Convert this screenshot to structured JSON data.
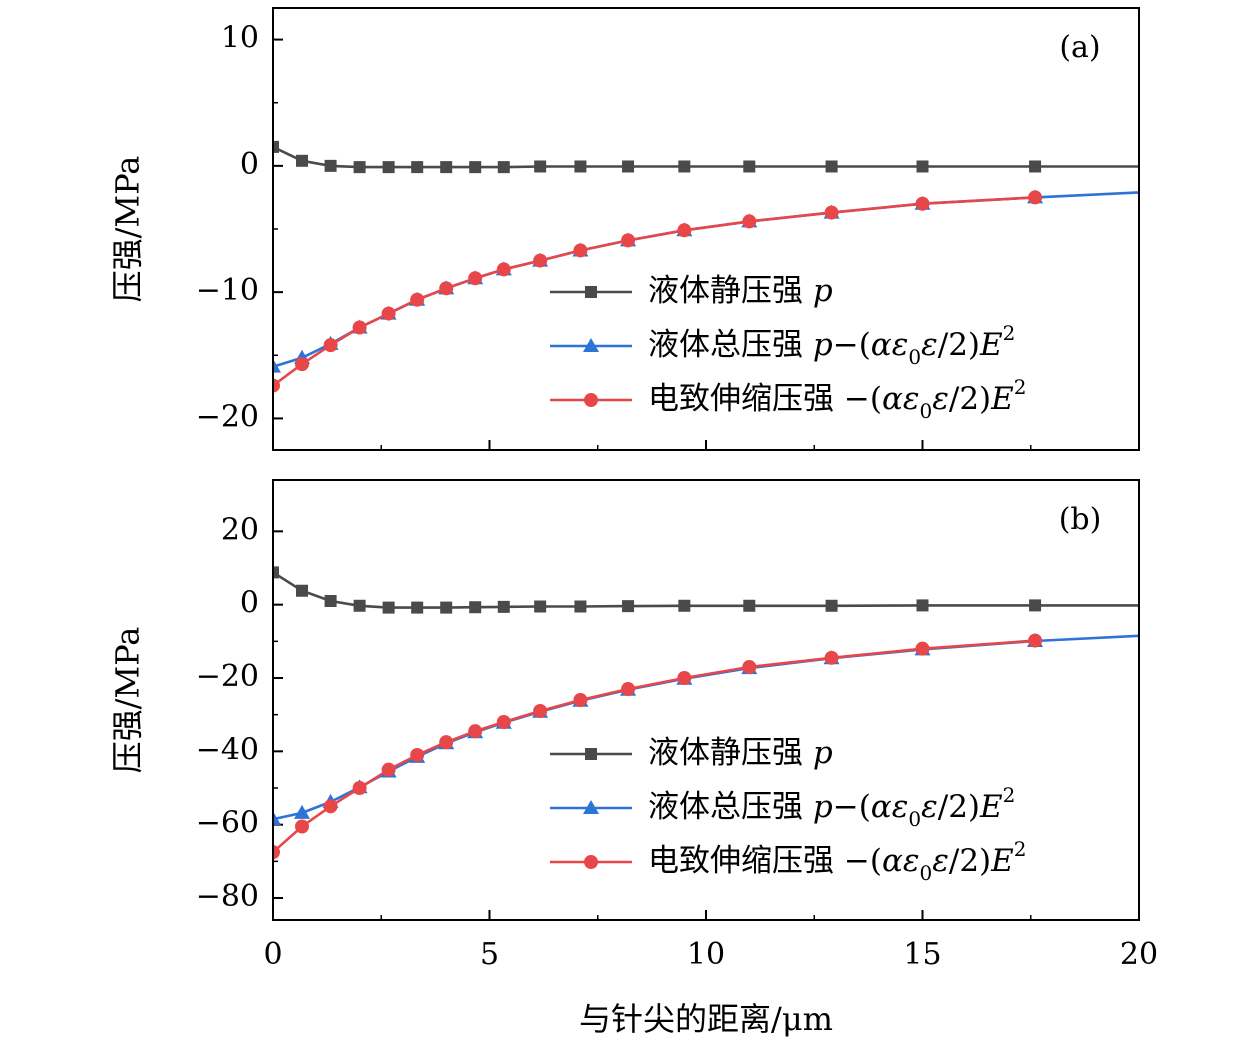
{
  "chart_data": [
    {
      "type": "line",
      "panel_label": "(a)",
      "ylabel": "压强/MPa",
      "xlim": [
        0,
        20
      ],
      "ylim": [
        -22.5,
        12.5
      ],
      "yticks": [
        10,
        0,
        -10,
        -20
      ],
      "ytick_labels": [
        "10",
        "0",
        "−10",
        "−20"
      ],
      "grid": false,
      "legend_position": "center-right",
      "series": [
        {
          "name": "液体静压强 p",
          "color": "#4a4a4a",
          "marker": "square",
          "x": [
            0,
            0.67,
            1.33,
            2.0,
            2.67,
            3.33,
            4.0,
            4.67,
            5.33,
            6.17,
            7.1,
            8.2,
            9.5,
            11.0,
            12.9,
            15.0,
            17.6,
            20.0
          ],
          "y": [
            1.5,
            0.4,
            0.0,
            -0.1,
            -0.1,
            -0.1,
            -0.1,
            -0.1,
            -0.1,
            -0.05,
            -0.05,
            -0.05,
            -0.05,
            -0.05,
            -0.05,
            -0.05,
            -0.05,
            -0.05
          ],
          "marker_until": 17.6
        },
        {
          "name": "液体总压强 p−(αε₀ε/2)E²",
          "color": "#2e73d6",
          "marker": "triangle",
          "x": [
            0,
            0.67,
            1.33,
            2.0,
            2.67,
            3.33,
            4.0,
            4.67,
            5.33,
            6.17,
            7.1,
            8.2,
            9.5,
            11.0,
            12.9,
            15.0,
            17.6,
            20.0
          ],
          "y": [
            -15.9,
            -15.2,
            -14.1,
            -12.8,
            -11.7,
            -10.6,
            -9.7,
            -8.9,
            -8.2,
            -7.5,
            -6.7,
            -5.9,
            -5.1,
            -4.4,
            -3.7,
            -3.0,
            -2.5,
            -2.1
          ],
          "marker_until": 17.6
        },
        {
          "name": "电致伸缩压强 −(αε₀ε/2)E²",
          "color": "#e8474a",
          "marker": "circle",
          "x": [
            0,
            0.67,
            1.33,
            2.0,
            2.67,
            3.33,
            4.0,
            4.67,
            5.33,
            6.17,
            7.1,
            8.2,
            9.5,
            11.0,
            12.9,
            15.0,
            17.6
          ],
          "y": [
            -17.4,
            -15.7,
            -14.2,
            -12.8,
            -11.7,
            -10.6,
            -9.7,
            -8.9,
            -8.2,
            -7.5,
            -6.7,
            -5.9,
            -5.1,
            -4.4,
            -3.7,
            -3.0,
            -2.5
          ],
          "marker_until": 17.6
        }
      ]
    },
    {
      "type": "line",
      "panel_label": "(b)",
      "ylabel": "压强/MPa",
      "xlabel": "与针尖的距离/μm",
      "xlim": [
        0,
        20
      ],
      "ylim": [
        -86,
        34
      ],
      "xticks": [
        0,
        5,
        10,
        15,
        20
      ],
      "xtick_labels": [
        "0",
        "5",
        "10",
        "15",
        "20"
      ],
      "yticks": [
        20,
        0,
        -20,
        -40,
        -60,
        -80
      ],
      "ytick_labels": [
        "20",
        "0",
        "−20",
        "−40",
        "−60",
        "−80"
      ],
      "grid": false,
      "legend_position": "center-right",
      "series": [
        {
          "name": "液体静压强 p",
          "color": "#4a4a4a",
          "marker": "square",
          "x": [
            0,
            0.67,
            1.33,
            2.0,
            2.67,
            3.33,
            4.0,
            4.67,
            5.33,
            6.17,
            7.1,
            8.2,
            9.5,
            11.0,
            12.9,
            15.0,
            17.6,
            20.0
          ],
          "y": [
            8.8,
            3.8,
            1.0,
            -0.3,
            -0.8,
            -0.8,
            -0.8,
            -0.7,
            -0.6,
            -0.5,
            -0.5,
            -0.4,
            -0.3,
            -0.3,
            -0.3,
            -0.2,
            -0.2,
            -0.2
          ],
          "marker_until": 17.6
        },
        {
          "name": "液体总压强 p−(αε₀ε/2)E²",
          "color": "#2e73d6",
          "marker": "triangle",
          "x": [
            0,
            0.67,
            1.33,
            2.0,
            2.67,
            3.33,
            4.0,
            4.67,
            5.33,
            6.17,
            7.1,
            8.2,
            9.5,
            11.0,
            12.9,
            15.0,
            17.6,
            20.0
          ],
          "y": [
            -58.5,
            -56.8,
            -53.8,
            -49.8,
            -45.5,
            -41.5,
            -37.8,
            -34.8,
            -32.2,
            -29.2,
            -26.2,
            -23.2,
            -20.2,
            -17.3,
            -14.6,
            -12.2,
            -9.9,
            -8.5
          ],
          "marker_until": 17.6
        },
        {
          "name": "电致伸缩压强 −(αε₀ε/2)E²",
          "color": "#e8474a",
          "marker": "circle",
          "x": [
            0,
            0.67,
            1.33,
            2.0,
            2.67,
            3.33,
            4.0,
            4.67,
            5.33,
            6.17,
            7.1,
            8.2,
            9.5,
            11.0,
            12.9,
            15.0,
            17.6
          ],
          "y": [
            -67.5,
            -60.5,
            -55.0,
            -50.0,
            -45.0,
            -41.0,
            -37.5,
            -34.5,
            -32.0,
            -29.0,
            -26.0,
            -23.0,
            -20.0,
            -17.0,
            -14.5,
            -12.0,
            -9.8
          ],
          "marker_until": 17.6
        }
      ]
    }
  ]
}
